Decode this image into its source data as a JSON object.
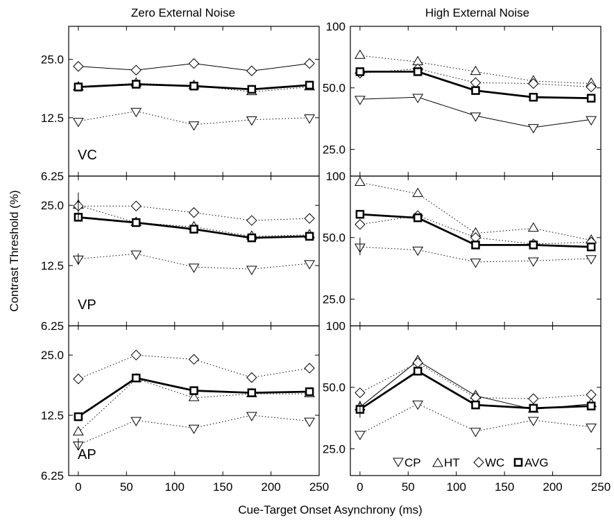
{
  "column_titles": [
    "Zero External Noise",
    "High External Noise"
  ],
  "xlabel": "Cue-Target Onset Asynchrony (ms)",
  "ylabel": "Contrast Threshold (%)",
  "legend": [
    {
      "marker": "triangle-down",
      "label": "CP"
    },
    {
      "marker": "triangle-up",
      "label": "HT"
    },
    {
      "marker": "diamond",
      "label": "WC"
    },
    {
      "marker": "square",
      "label": "AVG"
    }
  ],
  "chart_data": [
    {
      "type": "line",
      "panel": "VC, Zero External Noise",
      "row_label": "VC",
      "y_scale": "log",
      "ylim": [
        6.25,
        37
      ],
      "yticks": [
        6.25,
        12.5,
        25.0
      ],
      "ytick_labels": [
        "6.25",
        "12.5",
        "25.0"
      ],
      "x": [
        0,
        60,
        120,
        180,
        240
      ],
      "xlim": [
        -10,
        250
      ],
      "xticks": [
        0,
        50,
        100,
        150,
        200,
        250
      ],
      "xtick_labels": [
        "0",
        "50",
        "100",
        "150",
        "200",
        "250"
      ],
      "series": [
        {
          "name": "CP",
          "values": [
            12.0,
            13.5,
            11.5,
            12.2,
            12.5
          ]
        },
        {
          "name": "HT",
          "values": [
            18.0,
            18.8,
            18.3,
            17.0,
            18.0
          ]
        },
        {
          "name": "WC",
          "values": [
            23.0,
            22.0,
            23.8,
            21.8,
            23.8
          ]
        },
        {
          "name": "AVG",
          "values": [
            18.0,
            18.6,
            18.2,
            17.5,
            18.4
          ]
        }
      ]
    },
    {
      "type": "line",
      "panel": "VC, High External Noise",
      "row_label": "",
      "y_scale": "log",
      "ylim": [
        18.5,
        100
      ],
      "yticks": [
        25.0,
        50.0,
        100
      ],
      "ytick_labels": [
        "25.0",
        "50.0",
        "100"
      ],
      "x": [
        0,
        60,
        120,
        180,
        240
      ],
      "xlim": [
        -10,
        250
      ],
      "xticks": [
        0,
        50,
        100,
        150,
        200,
        250
      ],
      "xtick_labels": [
        "0",
        "50",
        "100",
        "150",
        "200",
        "250"
      ],
      "series": [
        {
          "name": "CP",
          "values": [
            44.0,
            45.0,
            36.5,
            32.0,
            35.0
          ]
        },
        {
          "name": "HT",
          "values": [
            72.0,
            67.0,
            60.0,
            54.0,
            52.5
          ]
        },
        {
          "name": "WC",
          "values": [
            59.0,
            62.0,
            53.0,
            52.5,
            50.5
          ]
        },
        {
          "name": "AVG",
          "values": [
            60.0,
            60.0,
            48.5,
            45.0,
            44.5
          ]
        }
      ]
    },
    {
      "type": "line",
      "panel": "VP, Zero External Noise",
      "row_label": "VP",
      "y_scale": "log",
      "ylim": [
        6.25,
        35
      ],
      "yticks": [
        6.25,
        12.5,
        25.0
      ],
      "ytick_labels": [
        "6.25",
        "12.5",
        "25.0"
      ],
      "x": [
        0,
        60,
        120,
        180,
        240
      ],
      "xlim": [
        -10,
        250
      ],
      "xticks": [
        0,
        50,
        100,
        150,
        200,
        250
      ],
      "xtick_labels": [
        "0",
        "50",
        "100",
        "150",
        "200",
        "250"
      ],
      "series": [
        {
          "name": "CP",
          "values": [
            13.5,
            14.3,
            12.3,
            12.0,
            12.8
          ]
        },
        {
          "name": "HT",
          "values": [
            25.0,
            20.5,
            19.5,
            17.5,
            17.8
          ]
        },
        {
          "name": "WC",
          "values": [
            24.8,
            24.8,
            23.0,
            21.0,
            21.5
          ]
        },
        {
          "name": "AVG",
          "values": [
            21.8,
            20.5,
            19.0,
            17.2,
            17.5
          ]
        }
      ]
    },
    {
      "type": "line",
      "panel": "VP, High External Noise",
      "row_label": "",
      "y_scale": "log",
      "ylim": [
        18.5,
        100
      ],
      "yticks": [
        25.0,
        50.0,
        100
      ],
      "ytick_labels": [
        "25.0",
        "50.0",
        "100"
      ],
      "x": [
        0,
        60,
        120,
        180,
        240
      ],
      "xlim": [
        -10,
        250
      ],
      "xticks": [
        0,
        50,
        100,
        150,
        200,
        250
      ],
      "xtick_labels": [
        "0",
        "50",
        "100",
        "150",
        "200",
        "250"
      ],
      "series": [
        {
          "name": "CP",
          "values": [
            45.0,
            43.5,
            38.0,
            38.5,
            39.5
          ]
        },
        {
          "name": "HT",
          "values": [
            93.0,
            82.0,
            52.5,
            55.5,
            48.5
          ]
        },
        {
          "name": "WC",
          "values": [
            58.0,
            64.0,
            50.0,
            46.5,
            47.5
          ]
        },
        {
          "name": "AVG",
          "values": [
            65.0,
            62.5,
            46.0,
            46.0,
            45.0
          ]
        }
      ]
    },
    {
      "type": "line",
      "panel": "AP, Zero External Noise",
      "row_label": "AP",
      "y_scale": "log",
      "ylim": [
        6.25,
        35
      ],
      "yticks": [
        6.25,
        12.5,
        25.0
      ],
      "ytick_labels": [
        "6.25",
        "12.5",
        "25.0"
      ],
      "x": [
        0,
        60,
        120,
        180,
        240
      ],
      "xlim": [
        -10,
        250
      ],
      "xticks": [
        0,
        50,
        100,
        150,
        200,
        250
      ],
      "xtick_labels": [
        "0",
        "50",
        "100",
        "150",
        "200",
        "250"
      ],
      "series": [
        {
          "name": "CP",
          "values": [
            8.9,
            11.8,
            10.8,
            12.5,
            11.7
          ]
        },
        {
          "name": "HT",
          "values": [
            10.3,
            19.0,
            15.3,
            16.0,
            16.0
          ]
        },
        {
          "name": "WC",
          "values": [
            19.0,
            25.0,
            23.8,
            19.3,
            21.5
          ]
        },
        {
          "name": "AVG",
          "values": [
            12.3,
            19.2,
            16.6,
            16.2,
            16.4
          ]
        }
      ]
    },
    {
      "type": "line",
      "panel": "AP, High External Noise",
      "row_label": "",
      "y_scale": "log",
      "ylim": [
        18.5,
        100
      ],
      "yticks": [
        25.0,
        50.0,
        100
      ],
      "ytick_labels": [
        "25.0",
        "50.0",
        "100"
      ],
      "x": [
        0,
        60,
        120,
        180,
        240
      ],
      "xlim": [
        -10,
        250
      ],
      "xticks": [
        0,
        50,
        100,
        150,
        200,
        250
      ],
      "xtick_labels": [
        "0",
        "50",
        "100",
        "150",
        "200",
        "250"
      ],
      "series": [
        {
          "name": "CP",
          "values": [
            29.5,
            41.5,
            30.5,
            34.5,
            32.0
          ]
        },
        {
          "name": "HT",
          "values": [
            40.0,
            67.5,
            45.5,
            39.0,
            41.5
          ]
        },
        {
          "name": "WC",
          "values": [
            47.0,
            66.0,
            44.5,
            44.0,
            46.0
          ]
        },
        {
          "name": "AVG",
          "values": [
            39.0,
            60.0,
            41.0,
            39.5,
            40.5
          ]
        }
      ]
    }
  ]
}
